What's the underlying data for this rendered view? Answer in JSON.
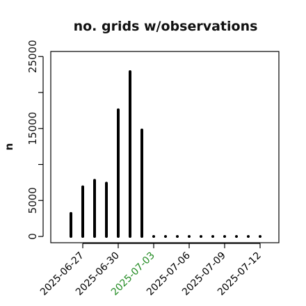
{
  "chart_data": {
    "type": "bar",
    "title": "no. grids w/observations",
    "xlabel": "",
    "ylabel": "n",
    "ylim": [
      0,
      26000
    ],
    "y_ticks": [
      0,
      5000,
      10000,
      15000,
      20000,
      25000
    ],
    "y_tick_labels": [
      "0",
      "5000",
      "",
      "15000",
      "",
      "25000"
    ],
    "x_ticks": [
      {
        "label": "2025-06-27",
        "index": 1,
        "color": "#000000"
      },
      {
        "label": "2025-06-30",
        "index": 4,
        "color": "#000000"
      },
      {
        "label": "2025-07-03",
        "index": 7,
        "color": "#228B22"
      },
      {
        "label": "2025-07-06",
        "index": 10,
        "color": "#000000"
      },
      {
        "label": "2025-07-09",
        "index": 13,
        "color": "#000000"
      },
      {
        "label": "2025-07-12",
        "index": 16,
        "color": "#000000"
      }
    ],
    "x": [
      "2025-06-26",
      "2025-06-27",
      "2025-06-28",
      "2025-06-29",
      "2025-06-30",
      "2025-07-01",
      "2025-07-02",
      "2025-07-03",
      "2025-07-04",
      "2025-07-05",
      "2025-07-06",
      "2025-07-07",
      "2025-07-08",
      "2025-07-09",
      "2025-07-10",
      "2025-07-11",
      "2025-07-12"
    ],
    "values": [
      3200,
      6900,
      7800,
      7400,
      17600,
      22900,
      14800,
      0,
      0,
      0,
      0,
      0,
      0,
      0,
      0,
      0,
      0
    ],
    "grid": false,
    "legend": "none"
  }
}
